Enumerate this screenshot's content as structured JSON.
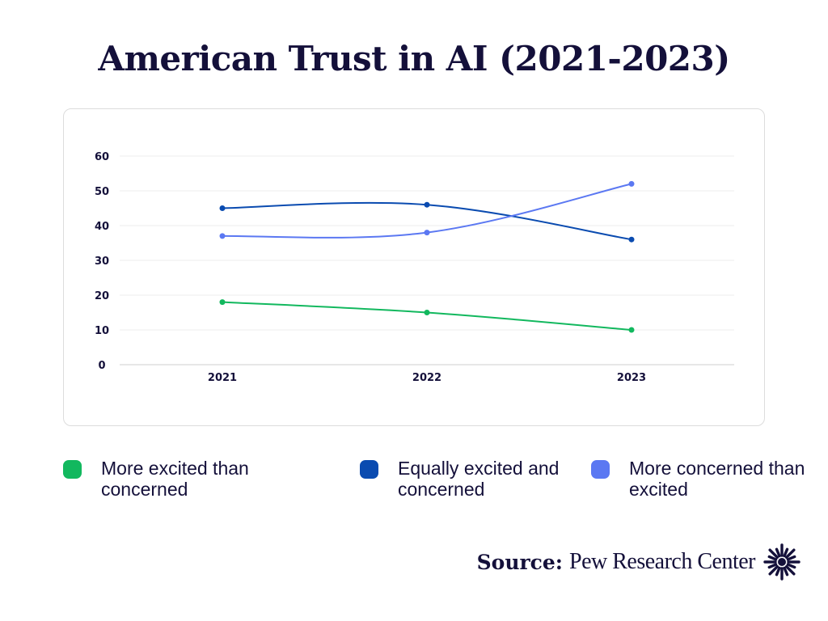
{
  "title": "American Trust in AI (2021-2023)",
  "chart_data": {
    "type": "line",
    "title": "American Trust in AI (2021-2023)",
    "x": [
      "2021",
      "2022",
      "2023"
    ],
    "xlabel": "",
    "ylabel": "",
    "ylim": [
      0,
      60
    ],
    "yticks": [
      0,
      10,
      20,
      30,
      40,
      50,
      60
    ],
    "grid": true,
    "legend_position": "bottom",
    "series": [
      {
        "name": "More excited than concerned",
        "color": "#12b85e",
        "values": [
          18,
          15,
          10
        ]
      },
      {
        "name": "Equally excited and concerned",
        "color": "#0a4bb0",
        "values": [
          45,
          46,
          36
        ]
      },
      {
        "name": "More concerned than excited",
        "color": "#5b78f2",
        "values": [
          37,
          38,
          52
        ]
      }
    ]
  },
  "legend": {
    "items": [
      {
        "label": "More excited than concerned",
        "color": "#12b85e"
      },
      {
        "label": "Equally excited and concerned",
        "color": "#0a4bb0"
      },
      {
        "label": "More concerned than excited",
        "color": "#5b78f2"
      }
    ]
  },
  "source": {
    "label": "Source:",
    "name": "Pew Research Center",
    "logo_icon": "pew-burst-icon"
  }
}
